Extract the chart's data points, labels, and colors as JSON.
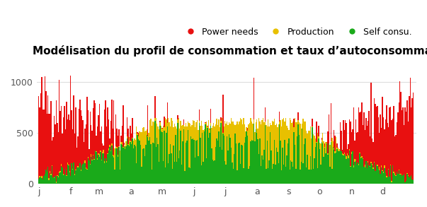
{
  "title": "Modélisation du profil de consommation et taux d’autoconsommation",
  "legend_labels": [
    "Power needs",
    "Production",
    "Self consu."
  ],
  "legend_colors": [
    "#e81010",
    "#e8c000",
    "#1aaa1a"
  ],
  "x_tick_labels": [
    "j",
    "f",
    "m",
    "a",
    "m",
    "j",
    "j",
    "a",
    "s",
    "o",
    "n",
    "d"
  ],
  "yticks": [
    0,
    500,
    1000
  ],
  "ylim": [
    0,
    1200
  ],
  "n_points": 365,
  "background_color": "#ffffff",
  "grid_color": "#dddddd",
  "title_fontsize": 11,
  "legend_fontsize": 9
}
